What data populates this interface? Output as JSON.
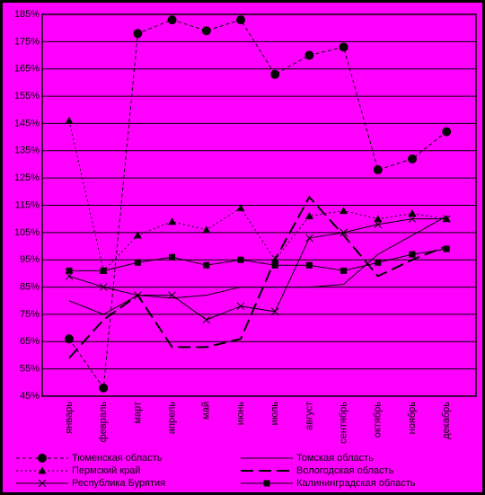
{
  "chart_data": {
    "type": "line",
    "categories": [
      "январь",
      "февраль",
      "март",
      "апрель",
      "май",
      "июнь",
      "июль",
      "август",
      "сентябрь",
      "октябрь",
      "ноябрь",
      "декабрь"
    ],
    "ylim": [
      45,
      185
    ],
    "yticks": [
      {
        "value": 45,
        "label": "45%"
      },
      {
        "value": 55,
        "label": "55%"
      },
      {
        "value": 65,
        "label": "65%"
      },
      {
        "value": 75,
        "label": "75%"
      },
      {
        "value": 85,
        "label": "85%"
      },
      {
        "value": 95,
        "label": "95%"
      },
      {
        "value": 105,
        "label": "105%"
      },
      {
        "value": 115,
        "label": "115%"
      },
      {
        "value": 125,
        "label": "125%"
      },
      {
        "value": 135,
        "label": "135%"
      },
      {
        "value": 145,
        "label": "145%"
      },
      {
        "value": 155,
        "label": "155%"
      },
      {
        "value": 165,
        "label": "165%"
      },
      {
        "value": 175,
        "label": "175%"
      },
      {
        "value": 185,
        "label": "185%"
      }
    ],
    "grid": true,
    "background": "#ff00ff",
    "legend": "bottom",
    "series": [
      {
        "name": "Тюменская область",
        "color": "#000000",
        "dash": "4 3",
        "marker": "circle",
        "width": 1,
        "values": [
          66,
          48,
          178,
          183,
          179,
          183,
          163,
          170,
          173,
          128,
          132,
          142
        ]
      },
      {
        "name": "Томская область",
        "color": "#000000",
        "dash": "none",
        "marker": "none",
        "width": 1,
        "values": [
          80,
          75,
          82,
          81,
          82,
          85,
          85,
          85,
          86,
          97,
          104,
          111
        ]
      },
      {
        "name": "Пермский край",
        "color": "#000000",
        "dash": "2 3",
        "marker": "triangle",
        "width": 1,
        "values": [
          146,
          91,
          104,
          109,
          106,
          114,
          95,
          111,
          113,
          110,
          112,
          110
        ]
      },
      {
        "name": "Вологодская область",
        "color": "#000000",
        "dash": "14 6",
        "marker": "none",
        "width": 2,
        "values": [
          59,
          73,
          82,
          63,
          63,
          66,
          95,
          118,
          104,
          89,
          95,
          100
        ]
      },
      {
        "name": "Республика Бурятия",
        "color": "#000000",
        "dash": "none",
        "marker": "x",
        "width": 1,
        "values": [
          89,
          85,
          82,
          82,
          73,
          78,
          76,
          103,
          105,
          108,
          110,
          110
        ]
      },
      {
        "name": "Калининградская область",
        "color": "#000000",
        "dash": "none",
        "marker": "square",
        "width": 1,
        "values": [
          91,
          91,
          94,
          96,
          93,
          95,
          93,
          93,
          91,
          94,
          97,
          99
        ]
      }
    ]
  }
}
